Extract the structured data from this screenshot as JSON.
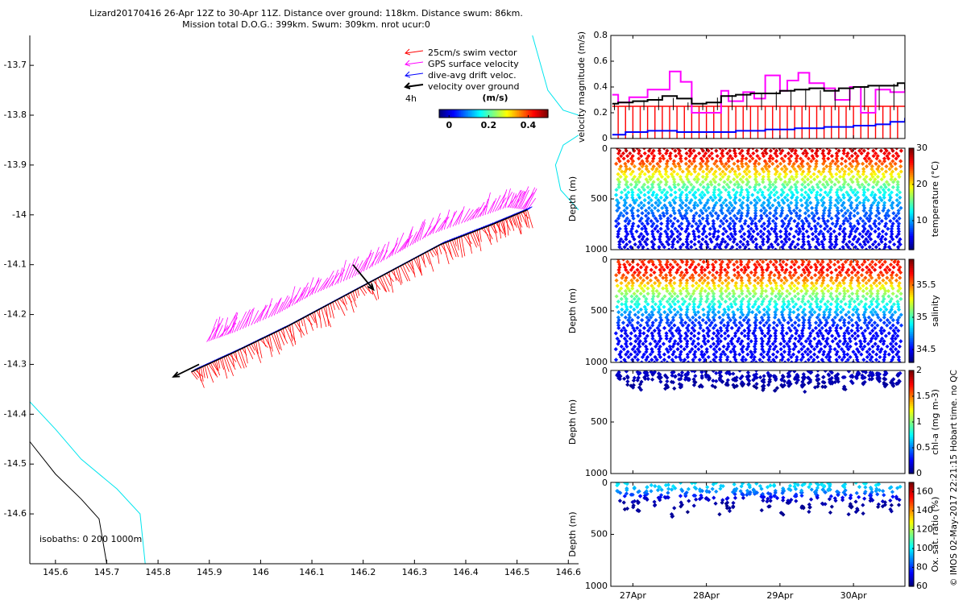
{
  "header": {
    "line1": "Lizard20170416 26-Apr 12Z to 30-Apr 11Z. Distance over ground: 118km. Distance swum: 86km.",
    "line2": "Mission total D.O.G.: 399km. Swum: 309km. nrot ucur:0"
  },
  "side_note": "© IMOS 02-May-2017 22:21:15 Hobart time. no QC",
  "colors": {
    "swim": "#ff0000",
    "gps": "#ff00ff",
    "drift": "#0000ff",
    "vog": "#000000",
    "isobath_0": "#000000",
    "isobath_200": "#00e5ee",
    "isobath_1000": "#00e5ee"
  },
  "chart_data": [
    {
      "id": "map",
      "type": "scatter",
      "title": "",
      "xlabel": "",
      "ylabel": "",
      "xlim": [
        145.55,
        146.62
      ],
      "ylim": [
        -14.7,
        -13.64
      ],
      "xticks": [
        145.6,
        145.7,
        145.8,
        145.9,
        146,
        146.1,
        146.2,
        146.3,
        146.4,
        146.5,
        146.6
      ],
      "xtick_labels": [
        "145.6",
        "145.7",
        "145.8",
        "145.9",
        "146",
        "146.1",
        "146.2",
        "146.3",
        "146.4",
        "146.5",
        "146.6"
      ],
      "yticks": [
        -13.7,
        -13.8,
        -13.9,
        -14,
        -14.1,
        -14.2,
        -14.3,
        -14.4,
        -14.5,
        -14.6
      ],
      "ytick_labels": [
        "-13.7",
        "-13.8",
        "-13.9",
        "-14",
        "-14.1",
        "-14.2",
        "-14.3",
        "-14.4",
        "-14.5",
        "-14.6"
      ],
      "legend": {
        "position": "top-right",
        "entries": [
          {
            "label": "25cm/s swim vector",
            "color": "#ff0000"
          },
          {
            "label": "GPS surface velocity",
            "color": "#ff00ff"
          },
          {
            "label": "dive-avg drift veloc.",
            "color": "#0000ff"
          },
          {
            "label": "velocity over ground",
            "color": "#000000"
          }
        ],
        "interval_label": "4h"
      },
      "colorbar": {
        "title": "(m/s)",
        "range": [
          -0.05,
          0.5
        ],
        "ticks": [
          0,
          0.2,
          0.4
        ],
        "tick_labels": [
          "0",
          "0.2",
          "0.4"
        ]
      },
      "isobath_label": "isobaths: 0   200   1000m",
      "track": {
        "lon": [
          145.865,
          145.95,
          146.05,
          146.15,
          146.25,
          146.35,
          146.45,
          146.52
        ],
        "lat": [
          -14.315,
          -14.275,
          -14.225,
          -14.17,
          -14.115,
          -14.06,
          -14.02,
          -13.99
        ]
      },
      "gps_track": {
        "lon": [
          145.895,
          145.95,
          146.03,
          146.1,
          146.18,
          146.26,
          146.33,
          146.41,
          146.48,
          146.52
        ],
        "lat": [
          -14.255,
          -14.235,
          -14.2,
          -14.16,
          -14.125,
          -14.08,
          -14.04,
          -14.01,
          -13.985,
          -13.99
        ]
      },
      "vog_vectors": [
        {
          "lon": 145.88,
          "lat": -14.3,
          "dlon": -0.05,
          "dlat": -0.025
        },
        {
          "lon": 146.18,
          "lat": -14.1,
          "dlon": 0.04,
          "dlat": -0.05
        }
      ],
      "isobaths": [
        {
          "depth": 0,
          "lon": [
            145.55,
            145.6,
            145.65,
            145.685,
            145.7
          ],
          "lat": [
            -14.455,
            -14.52,
            -14.57,
            -14.61,
            -14.7
          ]
        },
        {
          "depth": 200,
          "lon": [
            145.55,
            145.6,
            145.65,
            145.72,
            145.765,
            145.775
          ],
          "lat": [
            -14.375,
            -14.43,
            -14.49,
            -14.55,
            -14.6,
            -14.7
          ]
        },
        {
          "depth": 1000,
          "lon": [
            146.53,
            146.56,
            146.59,
            146.62
          ],
          "lat": [
            -13.64,
            -13.75,
            -13.79,
            -13.8
          ]
        },
        {
          "depth": 1000,
          "lon": [
            146.62,
            146.59,
            146.575,
            146.585,
            146.62
          ],
          "lat": [
            -13.84,
            -13.86,
            -13.9,
            -13.95,
            -13.99
          ]
        }
      ]
    },
    {
      "id": "velocity",
      "type": "line",
      "title": "",
      "xlabel": "",
      "ylabel": "velocity magnitude (m/s)",
      "xlim": [
        26.5,
        30.5
      ],
      "ylim": [
        0,
        0.8
      ],
      "yticks": [
        0,
        0.2,
        0.4,
        0.6,
        0.8
      ],
      "ytick_labels": [
        "0",
        "0.2",
        "0.4",
        "0.6",
        "0.8"
      ],
      "series": [
        {
          "name": "swim",
          "color": "#ff0000",
          "x": [
            26.52,
            26.8,
            27.5,
            28.2,
            28.9,
            29.6,
            30.5
          ],
          "y": [
            0.25,
            0.25,
            0.25,
            0.25,
            0.25,
            0.25,
            0.25
          ]
        },
        {
          "name": "GPS surface velocity",
          "color": "#ff00ff",
          "x": [
            26.52,
            26.6,
            26.75,
            26.9,
            27.0,
            27.2,
            27.3,
            27.45,
            27.6,
            27.8,
            28.0,
            28.1,
            28.2,
            28.3,
            28.45,
            28.6,
            28.8,
            28.9,
            29.05,
            29.2,
            29.4,
            29.55,
            29.75,
            29.9,
            30.1,
            30.3,
            30.5
          ],
          "y": [
            0.34,
            0.28,
            0.32,
            0.32,
            0.38,
            0.38,
            0.52,
            0.44,
            0.2,
            0.2,
            0.37,
            0.29,
            0.29,
            0.36,
            0.31,
            0.49,
            0.37,
            0.45,
            0.51,
            0.43,
            0.39,
            0.3,
            0.4,
            0.2,
            0.38,
            0.36,
            0.43
          ]
        },
        {
          "name": "dive-avg drift veloc.",
          "color": "#0000ff",
          "x": [
            26.52,
            26.7,
            27.0,
            27.4,
            27.8,
            28.2,
            28.6,
            29.0,
            29.4,
            29.8,
            30.1,
            30.3,
            30.5
          ],
          "y": [
            0.03,
            0.05,
            0.06,
            0.05,
            0.05,
            0.06,
            0.07,
            0.08,
            0.09,
            0.1,
            0.11,
            0.13,
            0.16
          ]
        },
        {
          "name": "velocity over ground",
          "color": "#000000",
          "x": [
            26.52,
            26.6,
            26.8,
            27.0,
            27.2,
            27.4,
            27.6,
            27.8,
            28.0,
            28.2,
            28.4,
            28.6,
            28.8,
            29.0,
            29.2,
            29.4,
            29.6,
            29.8,
            30.0,
            30.2,
            30.4,
            30.5
          ],
          "y": [
            0.27,
            0.28,
            0.29,
            0.3,
            0.33,
            0.31,
            0.27,
            0.28,
            0.33,
            0.34,
            0.35,
            0.35,
            0.37,
            0.38,
            0.39,
            0.37,
            0.39,
            0.4,
            0.41,
            0.41,
            0.43,
            0.38
          ]
        }
      ]
    },
    {
      "id": "temperature",
      "type": "scatter",
      "ylabel": "Depth (m)",
      "colorbar_label": "temperature (°C)",
      "ylim": [
        0,
        1000
      ],
      "yticks": [
        0,
        500,
        1000
      ],
      "ytick_labels": [
        "0",
        "500",
        "1000"
      ],
      "clim": [
        2,
        30
      ],
      "cticks": [
        10,
        20,
        30
      ],
      "ctick_labels": [
        "10",
        "20",
        "30"
      ],
      "profiles": 42,
      "max_depth": 1000,
      "profile_shape": {
        "depth": [
          0,
          100,
          200,
          300,
          400,
          500,
          600,
          700,
          800,
          900,
          1000
        ],
        "value": [
          28,
          26,
          22,
          18,
          14,
          11,
          9,
          7,
          6,
          5,
          5
        ]
      }
    },
    {
      "id": "salinity",
      "type": "scatter",
      "ylabel": "Depth (m)",
      "colorbar_label": "salinity",
      "ylim": [
        0,
        1000
      ],
      "yticks": [
        0,
        500,
        1000
      ],
      "ytick_labels": [
        "0",
        "500",
        "1000"
      ],
      "clim": [
        34.3,
        35.9
      ],
      "cticks": [
        34.5,
        35,
        35.5
      ],
      "ctick_labels": [
        "34.5",
        "35",
        "35.5"
      ],
      "profiles": 42,
      "max_depth": 1000,
      "profile_shape": {
        "depth": [
          0,
          100,
          200,
          300,
          400,
          500,
          600,
          700,
          800,
          900,
          1000
        ],
        "value": [
          35.6,
          35.7,
          35.5,
          35.2,
          35.0,
          34.8,
          34.6,
          34.5,
          34.5,
          34.5,
          34.5
        ]
      }
    },
    {
      "id": "chla",
      "type": "scatter",
      "ylabel": "Depth (m)",
      "colorbar_label": "chl-a (mg m-3)",
      "ylim": [
        0,
        1000
      ],
      "yticks": [
        0,
        500,
        1000
      ],
      "ytick_labels": [
        "0",
        "500",
        "1000"
      ],
      "clim": [
        0,
        2
      ],
      "cticks": [
        0,
        0.5,
        1,
        1.5,
        2
      ],
      "ctick_labels": [
        "0",
        "0.5",
        "1",
        "1.5",
        "2"
      ],
      "profiles": 42,
      "max_depth": 180,
      "profile_shape": {
        "depth": [
          0,
          40,
          80,
          120,
          160,
          180
        ],
        "value": [
          0.15,
          0.12,
          0.1,
          0.08,
          0.05,
          0.05
        ]
      }
    },
    {
      "id": "oxygen",
      "type": "scatter",
      "ylabel": "Depth (m)",
      "colorbar_label": "Ox. sat. ratio (%)",
      "ylim": [
        0,
        1000
      ],
      "yticks": [
        0,
        500,
        1000
      ],
      "ytick_labels": [
        "0",
        "500",
        "1000"
      ],
      "clim": [
        60,
        170
      ],
      "cticks": [
        60,
        80,
        100,
        120,
        140,
        160
      ],
      "ctick_labels": [
        "60",
        "80",
        "100",
        "120",
        "140",
        "160"
      ],
      "profiles": 42,
      "max_depth": 280,
      "profile_shape": {
        "depth": [
          0,
          50,
          100,
          150,
          200,
          280
        ],
        "value": [
          100,
          96,
          85,
          70,
          64,
          62
        ]
      }
    }
  ],
  "time_axis": {
    "xlim": [
      26.5,
      30.5
    ],
    "ticks": [
      26.8,
      27.8,
      28.8,
      29.8
    ],
    "tick_labels": [
      "27Apr",
      "28Apr",
      "29Apr",
      "30Apr"
    ]
  }
}
